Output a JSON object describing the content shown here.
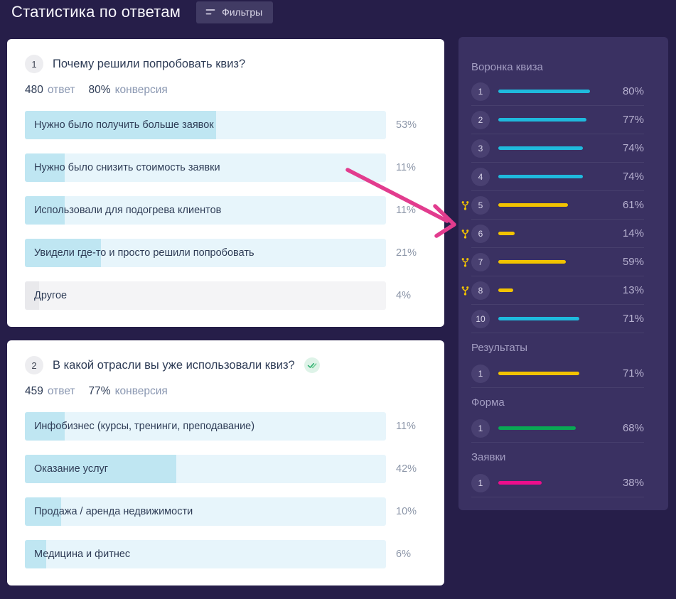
{
  "header": {
    "title": "Статистика по ответам",
    "filters_label": "Фильтры"
  },
  "questions": [
    {
      "number": "1",
      "title": "Почему решили попробовать квиз?",
      "answers_count": "480",
      "answers_label": "ответ",
      "conversion": "80%",
      "conversion_label": "конверсия",
      "verified": false,
      "bars": [
        {
          "label": "Нужно было получить больше заявок",
          "percent": "53%",
          "value": 53,
          "style": "blue"
        },
        {
          "label": "Нужно было снизить стоимость заявки",
          "percent": "11%",
          "value": 11,
          "style": "blue"
        },
        {
          "label": "Использовали для подогрева клиентов",
          "percent": "11%",
          "value": 11,
          "style": "blue"
        },
        {
          "label": "Увидели где-то и просто решили попробовать",
          "percent": "21%",
          "value": 21,
          "style": "blue"
        },
        {
          "label": "Другое",
          "percent": "4%",
          "value": 4,
          "style": "gray"
        }
      ]
    },
    {
      "number": "2",
      "title": "В какой отрасли вы уже использовали квиз?",
      "answers_count": "459",
      "answers_label": "ответ",
      "conversion": "77%",
      "conversion_label": "конверсия",
      "verified": true,
      "bars": [
        {
          "label": "Инфобизнес (курсы, тренинги, преподавание)",
          "percent": "11%",
          "value": 11,
          "style": "blue"
        },
        {
          "label": "Оказание услуг",
          "percent": "42%",
          "value": 42,
          "style": "blue"
        },
        {
          "label": "Продажа / аренда недвижимости",
          "percent": "10%",
          "value": 10,
          "style": "blue"
        },
        {
          "label": "Медицина и фитнес",
          "percent": "6%",
          "value": 6,
          "style": "blue"
        }
      ]
    }
  ],
  "funnel": {
    "sections": [
      {
        "title": "Воронка квиза",
        "rows": [
          {
            "number": "1",
            "percent": "80%",
            "value": 80,
            "color": "cyan",
            "branch": false
          },
          {
            "number": "2",
            "percent": "77%",
            "value": 77,
            "color": "cyan",
            "branch": false
          },
          {
            "number": "3",
            "percent": "74%",
            "value": 74,
            "color": "cyan",
            "branch": false
          },
          {
            "number": "4",
            "percent": "74%",
            "value": 74,
            "color": "cyan",
            "branch": false
          },
          {
            "number": "5",
            "percent": "61%",
            "value": 61,
            "color": "yellow",
            "branch": true
          },
          {
            "number": "6",
            "percent": "14%",
            "value": 14,
            "color": "yellow",
            "branch": true
          },
          {
            "number": "7",
            "percent": "59%",
            "value": 59,
            "color": "yellow",
            "branch": true
          },
          {
            "number": "8",
            "percent": "13%",
            "value": 13,
            "color": "yellow",
            "branch": true
          },
          {
            "number": "10",
            "percent": "71%",
            "value": 71,
            "color": "cyan",
            "branch": false
          }
        ]
      },
      {
        "title": "Результаты",
        "rows": [
          {
            "number": "1",
            "percent": "71%",
            "value": 71,
            "color": "yellow",
            "branch": false
          }
        ]
      },
      {
        "title": "Форма",
        "rows": [
          {
            "number": "1",
            "percent": "68%",
            "value": 68,
            "color": "green",
            "branch": false
          }
        ]
      },
      {
        "title": "Заявки",
        "rows": [
          {
            "number": "1",
            "percent": "38%",
            "value": 38,
            "color": "pink",
            "branch": false
          }
        ]
      }
    ]
  },
  "colors": {
    "cyan": "#1fbadd",
    "yellow": "#f2c300",
    "green": "#09a854",
    "pink": "#ec0d8c",
    "arrow": "#e23c8e",
    "answer_fill": "#bfe6f2",
    "answer_track": "#e7f5fb",
    "check": "#2fae71",
    "check_light": "#6fcf97"
  }
}
